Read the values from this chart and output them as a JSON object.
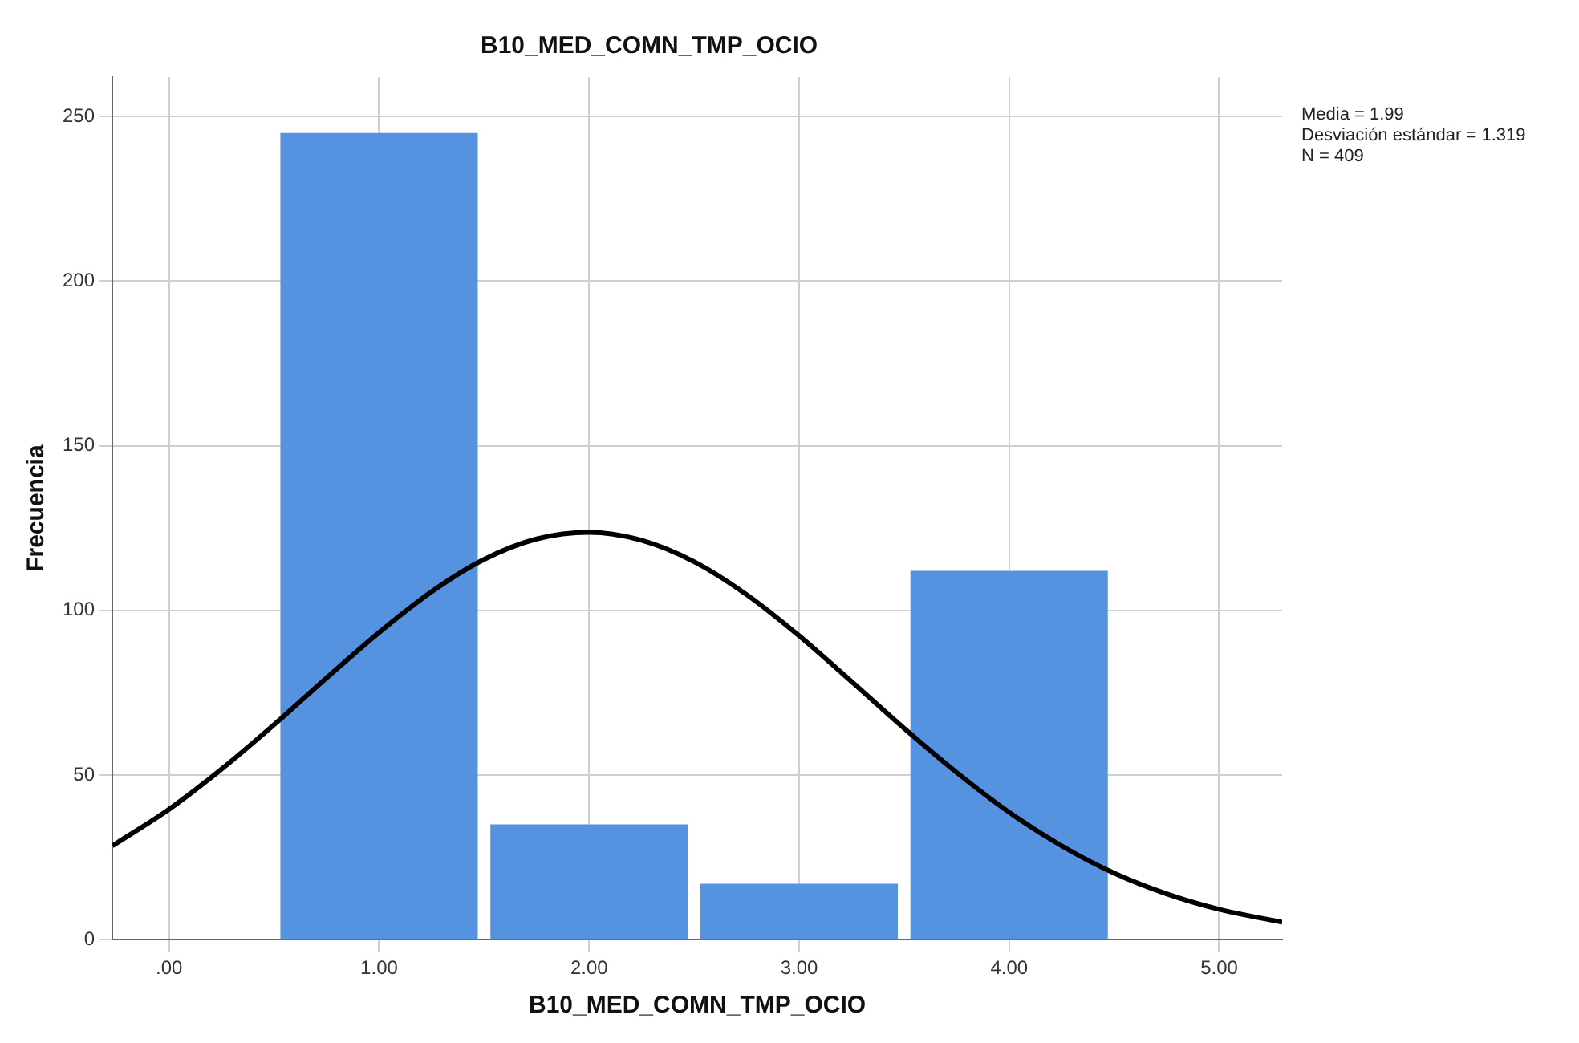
{
  "chart_data": {
    "type": "histogram",
    "title": "B10_MED_COMN_TMP_OCIO",
    "xlabel": "B10_MED_COMN_TMP_OCIO",
    "ylabel": "Frecuencia",
    "bins": [
      0.5,
      1.5,
      2.5,
      3.5,
      4.5
    ],
    "values": [
      245,
      35,
      17,
      112
    ],
    "color": "#5592e0",
    "series": [
      {
        "type": "line",
        "color": "#000000",
        "marker": "none",
        "x": [
          -0.27,
          0,
          0.25,
          0.5,
          0.75,
          1,
          1.25,
          1.5,
          1.75,
          2,
          2.25,
          2.5,
          2.75,
          3,
          3.25,
          3.5,
          3.75,
          4,
          4.25,
          4.5,
          4.75,
          5,
          5.3
        ],
        "values": [
          28.5,
          39.6,
          51.8,
          65.3,
          79.5,
          93.3,
          105.7,
          115.5,
          121.7,
          123.7,
          121.3,
          114.8,
          104.8,
          92.3,
          78.4,
          64.2,
          50.8,
          38.7,
          28.5,
          20.2,
          13.9,
          9.2,
          5.3
        ]
      }
    ],
    "xlim": [
      -0.27,
      5.3
    ],
    "xticks": [
      {
        "value": 0,
        "label": ".00"
      },
      {
        "value": 1,
        "label": "1.00"
      },
      {
        "value": 2,
        "label": "2.00"
      },
      {
        "value": 3,
        "label": "3.00"
      },
      {
        "value": 4,
        "label": "4.00"
      },
      {
        "value": 5,
        "label": "5.00"
      }
    ],
    "ylim": [
      0,
      262
    ],
    "yticks": [
      0,
      50,
      100,
      150,
      200,
      250
    ],
    "grid": true,
    "annotations": [
      "Media = 1.99",
      "Desviación estándar = 1.319",
      "N = 409"
    ]
  }
}
